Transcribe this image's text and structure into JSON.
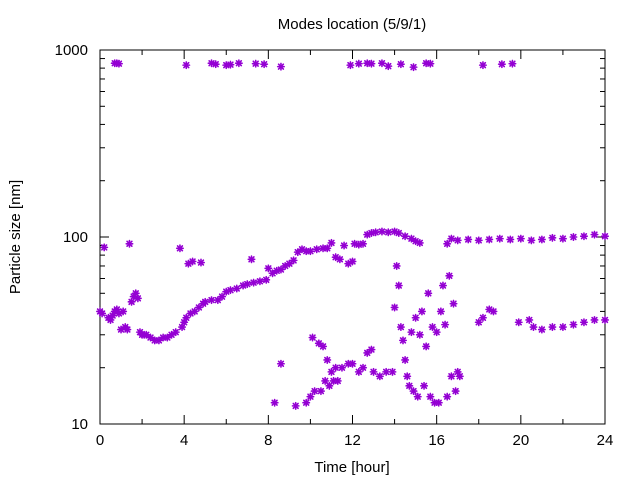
{
  "chart_data": {
    "type": "scatter",
    "title": "Modes location (5/9/1)",
    "xlabel": "Time [hour]",
    "ylabel": "Particle size [nm]",
    "xlim": [
      0,
      24
    ],
    "ylim": [
      10,
      1000
    ],
    "yscale": "log",
    "x_ticks": [
      "0",
      "4",
      "8",
      "12",
      "16",
      "20",
      "24"
    ],
    "y_ticks": [
      "10",
      "100",
      "1000"
    ],
    "grid": false,
    "legend": "none",
    "marker_color": "#9400d3",
    "series": [
      {
        "values": [
          [
            0.7,
            850
          ],
          [
            0.8,
            850
          ],
          [
            0.9,
            845
          ],
          [
            4.1,
            830
          ],
          [
            5.3,
            850
          ],
          [
            5.5,
            840
          ],
          [
            6.0,
            830
          ],
          [
            6.2,
            835
          ],
          [
            6.6,
            850
          ],
          [
            7.4,
            845
          ],
          [
            7.8,
            840
          ],
          [
            8.6,
            815
          ],
          [
            11.9,
            830
          ],
          [
            12.3,
            845
          ],
          [
            12.7,
            850
          ],
          [
            12.9,
            845
          ],
          [
            13.4,
            850
          ],
          [
            13.7,
            820
          ],
          [
            14.3,
            840
          ],
          [
            14.9,
            810
          ],
          [
            15.5,
            850
          ],
          [
            15.7,
            845
          ],
          [
            18.2,
            830
          ],
          [
            19.1,
            840
          ],
          [
            19.6,
            845
          ]
        ]
      },
      {
        "values": [
          [
            0.0,
            40
          ],
          [
            0.1,
            39
          ],
          [
            0.2,
            88
          ],
          [
            0.4,
            37
          ],
          [
            0.5,
            36
          ],
          [
            0.6,
            38
          ],
          [
            0.7,
            40
          ],
          [
            0.8,
            41
          ],
          [
            0.9,
            39
          ],
          [
            1.0,
            32
          ],
          [
            1.1,
            40
          ],
          [
            1.2,
            33
          ],
          [
            1.3,
            32
          ],
          [
            1.4,
            92
          ],
          [
            1.5,
            45
          ],
          [
            1.6,
            48
          ],
          [
            1.7,
            50
          ],
          [
            1.8,
            47
          ],
          [
            1.9,
            31
          ],
          [
            2.0,
            30
          ],
          [
            2.1,
            30
          ],
          [
            2.2,
            30
          ],
          [
            2.4,
            29
          ],
          [
            2.6,
            28
          ],
          [
            2.8,
            28
          ],
          [
            3.0,
            29
          ],
          [
            3.2,
            29
          ],
          [
            3.4,
            30
          ],
          [
            3.6,
            31
          ],
          [
            3.8,
            87
          ],
          [
            3.9,
            33
          ],
          [
            4.0,
            35
          ],
          [
            4.1,
            37
          ],
          [
            4.2,
            72
          ],
          [
            4.3,
            39
          ],
          [
            4.4,
            74
          ],
          [
            4.5,
            40
          ],
          [
            4.7,
            42
          ],
          [
            4.8,
            73
          ],
          [
            4.9,
            44
          ],
          [
            5.0,
            45
          ],
          [
            5.3,
            46
          ],
          [
            5.6,
            46
          ],
          [
            5.8,
            48
          ],
          [
            6.0,
            51
          ],
          [
            6.2,
            52
          ],
          [
            6.5,
            53
          ],
          [
            6.8,
            55
          ],
          [
            7.0,
            56
          ],
          [
            7.2,
            76
          ],
          [
            7.3,
            57
          ],
          [
            7.6,
            58
          ],
          [
            7.9,
            59
          ],
          [
            8.0,
            68
          ],
          [
            8.2,
            64
          ],
          [
            8.4,
            66
          ],
          [
            8.6,
            67
          ],
          [
            8.8,
            70
          ],
          [
            9.0,
            72
          ],
          [
            9.2,
            75
          ],
          [
            9.4,
            83
          ],
          [
            9.6,
            86
          ],
          [
            9.8,
            84
          ],
          [
            10.0,
            84
          ],
          [
            10.3,
            86
          ],
          [
            10.6,
            87
          ],
          [
            10.8,
            87
          ],
          [
            11.0,
            93
          ],
          [
            11.2,
            78
          ],
          [
            11.4,
            76
          ],
          [
            11.6,
            90
          ],
          [
            11.8,
            72
          ],
          [
            12.0,
            74
          ],
          [
            12.1,
            92
          ],
          [
            12.3,
            91
          ],
          [
            12.5,
            92
          ],
          [
            12.7,
            103
          ],
          [
            12.9,
            105
          ],
          [
            13.1,
            106
          ],
          [
            13.4,
            107
          ],
          [
            13.7,
            106
          ],
          [
            14.0,
            107
          ],
          [
            14.2,
            105
          ],
          [
            14.5,
            101
          ],
          [
            14.8,
            98
          ],
          [
            15.0,
            95
          ],
          [
            15.2,
            93
          ],
          [
            16.5,
            92
          ],
          [
            16.7,
            98
          ],
          [
            17.0,
            96
          ],
          [
            17.5,
            97
          ],
          [
            18.0,
            96
          ],
          [
            18.5,
            97
          ],
          [
            19.0,
            98
          ],
          [
            19.5,
            97
          ],
          [
            20.0,
            98
          ],
          [
            20.5,
            96
          ],
          [
            21.0,
            97
          ],
          [
            21.5,
            99
          ],
          [
            22.0,
            98
          ],
          [
            22.5,
            100
          ],
          [
            23.0,
            101
          ],
          [
            23.5,
            103
          ],
          [
            24.0,
            101
          ]
        ]
      },
      {
        "values": [
          [
            8.3,
            13
          ],
          [
            8.6,
            21
          ],
          [
            9.3,
            12.5
          ],
          [
            9.8,
            13
          ],
          [
            10.0,
            14
          ],
          [
            10.1,
            29
          ],
          [
            10.2,
            15
          ],
          [
            10.4,
            27
          ],
          [
            10.5,
            15
          ],
          [
            10.6,
            26
          ],
          [
            10.7,
            17
          ],
          [
            10.8,
            22
          ],
          [
            10.9,
            16
          ],
          [
            11.0,
            19
          ],
          [
            11.1,
            17
          ],
          [
            11.2,
            20
          ],
          [
            11.3,
            17
          ],
          [
            11.5,
            20
          ],
          [
            11.8,
            21
          ],
          [
            12.0,
            21
          ],
          [
            12.3,
            19
          ],
          [
            12.5,
            20
          ],
          [
            12.7,
            24
          ],
          [
            12.9,
            25
          ],
          [
            13.0,
            19
          ],
          [
            13.3,
            18
          ],
          [
            13.6,
            19
          ],
          [
            13.9,
            19
          ],
          [
            14.0,
            42
          ],
          [
            14.1,
            70
          ],
          [
            14.2,
            55
          ],
          [
            14.3,
            33
          ],
          [
            14.4,
            28
          ],
          [
            14.5,
            22
          ],
          [
            14.6,
            18
          ],
          [
            14.7,
            16
          ],
          [
            14.8,
            31
          ],
          [
            14.9,
            15
          ],
          [
            15.0,
            37
          ],
          [
            15.1,
            14
          ],
          [
            15.2,
            30
          ],
          [
            15.3,
            40
          ],
          [
            15.4,
            16
          ],
          [
            15.5,
            26
          ],
          [
            15.6,
            50
          ],
          [
            15.7,
            14
          ],
          [
            15.8,
            33
          ],
          [
            15.9,
            13
          ],
          [
            16.0,
            31
          ],
          [
            16.1,
            13
          ],
          [
            16.2,
            40
          ],
          [
            16.3,
            55
          ],
          [
            16.4,
            34
          ],
          [
            16.5,
            14
          ],
          [
            16.6,
            62
          ],
          [
            16.7,
            18
          ],
          [
            16.8,
            44
          ],
          [
            16.9,
            15
          ],
          [
            17.0,
            19
          ],
          [
            17.1,
            18
          ],
          [
            18.0,
            35
          ],
          [
            18.2,
            37
          ],
          [
            18.5,
            41
          ],
          [
            18.7,
            40
          ],
          [
            19.9,
            35
          ],
          [
            20.4,
            36
          ],
          [
            20.6,
            33
          ],
          [
            21.0,
            32
          ],
          [
            21.5,
            33
          ],
          [
            22.0,
            33
          ],
          [
            22.5,
            34
          ],
          [
            23.0,
            35
          ],
          [
            23.5,
            36
          ],
          [
            24.0,
            36
          ]
        ]
      }
    ]
  }
}
